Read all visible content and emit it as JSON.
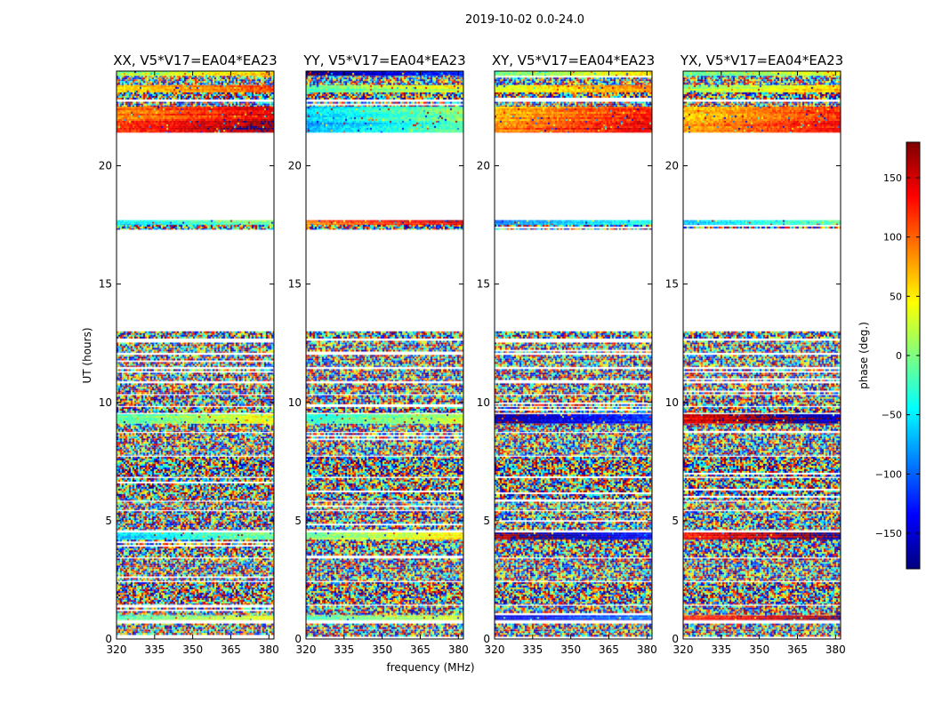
{
  "chart_data": {
    "type": "heatmap",
    "title": "2019-10-02 0.0-24.0",
    "xlabel": "frequency (MHz)",
    "ylabel": "UT (hours)",
    "xlim": [
      320,
      382
    ],
    "ylim": [
      0,
      24
    ],
    "xticks": [
      320,
      335,
      350,
      365,
      380
    ],
    "yticks": [
      0,
      5,
      10,
      15,
      20
    ],
    "panels": [
      {
        "name": "XX, V5*V17=EA04*EA23"
      },
      {
        "name": "YY, V5*V17=EA04*EA23"
      },
      {
        "name": "XY, V5*V17=EA04*EA23"
      },
      {
        "name": "YX, V5*V17=EA04*EA23"
      }
    ],
    "colorbar": {
      "label": "phase (deg.)",
      "range": [
        -180,
        180
      ],
      "ticks": [
        150,
        100,
        50,
        0,
        -50,
        -100,
        -150
      ],
      "colormap": "jet"
    },
    "time_blocks": [
      {
        "start": 0.1,
        "end": 0.4,
        "mode": "noisy"
      },
      {
        "start": 0.4,
        "end": 0.65,
        "mode": "noisy"
      },
      {
        "start": 0.8,
        "end": 1.0,
        "mode": "coherent",
        "phase": [
          10,
          5,
          -120,
          150
        ]
      },
      {
        "start": 1.0,
        "end": 1.4,
        "mode": "noisy"
      },
      {
        "start": 1.45,
        "end": 2.4,
        "mode": "noisy"
      },
      {
        "start": 2.45,
        "end": 3.4,
        "mode": "noisy"
      },
      {
        "start": 3.45,
        "end": 4.2,
        "mode": "noisy"
      },
      {
        "start": 4.2,
        "end": 4.5,
        "mode": "coherent",
        "phase": [
          -40,
          30,
          -150,
          160
        ]
      },
      {
        "start": 4.6,
        "end": 5.4,
        "mode": "noisy"
      },
      {
        "start": 5.45,
        "end": 5.8,
        "mode": "noisy"
      },
      {
        "start": 5.85,
        "end": 6.8,
        "mode": "noisy"
      },
      {
        "start": 6.85,
        "end": 7.7,
        "mode": "noisy"
      },
      {
        "start": 7.75,
        "end": 8.7,
        "mode": "noisy"
      },
      {
        "start": 8.75,
        "end": 9.1,
        "mode": "noisy"
      },
      {
        "start": 9.1,
        "end": 9.5,
        "mode": "coherent",
        "phase": [
          15,
          0,
          -140,
          170
        ]
      },
      {
        "start": 9.55,
        "end": 9.8,
        "mode": "noisy"
      },
      {
        "start": 9.85,
        "end": 10.3,
        "mode": "noisy"
      },
      {
        "start": 10.35,
        "end": 10.8,
        "mode": "noisy"
      },
      {
        "start": 10.9,
        "end": 11.4,
        "mode": "noisy"
      },
      {
        "start": 11.5,
        "end": 12.0,
        "mode": "noisy"
      },
      {
        "start": 12.1,
        "end": 12.6,
        "mode": "noisy"
      },
      {
        "start": 12.7,
        "end": 13.0,
        "mode": "noisy"
      },
      {
        "start": 17.3,
        "end": 17.5,
        "mode": "noisy"
      },
      {
        "start": 17.5,
        "end": 17.7,
        "mode": "coherent",
        "phase": [
          -30,
          130,
          -60,
          -40
        ]
      },
      {
        "start": 21.4,
        "end": 21.9,
        "mode": "coherent",
        "phase": [
          150,
          -50,
          120,
          110
        ]
      },
      {
        "start": 21.9,
        "end": 22.5,
        "mode": "coherent",
        "phase": [
          120,
          -30,
          100,
          90
        ]
      },
      {
        "start": 22.5,
        "end": 22.7,
        "mode": "noisy"
      },
      {
        "start": 22.8,
        "end": 23.1,
        "mode": "noisy"
      },
      {
        "start": 23.1,
        "end": 23.4,
        "mode": "coherent",
        "phase": [
          80,
          10,
          60,
          40
        ]
      },
      {
        "start": 23.4,
        "end": 23.8,
        "mode": "noisy"
      },
      {
        "start": 23.8,
        "end": 24.0,
        "mode": "coherent",
        "phase": [
          30,
          -140,
          20,
          10
        ]
      }
    ]
  }
}
